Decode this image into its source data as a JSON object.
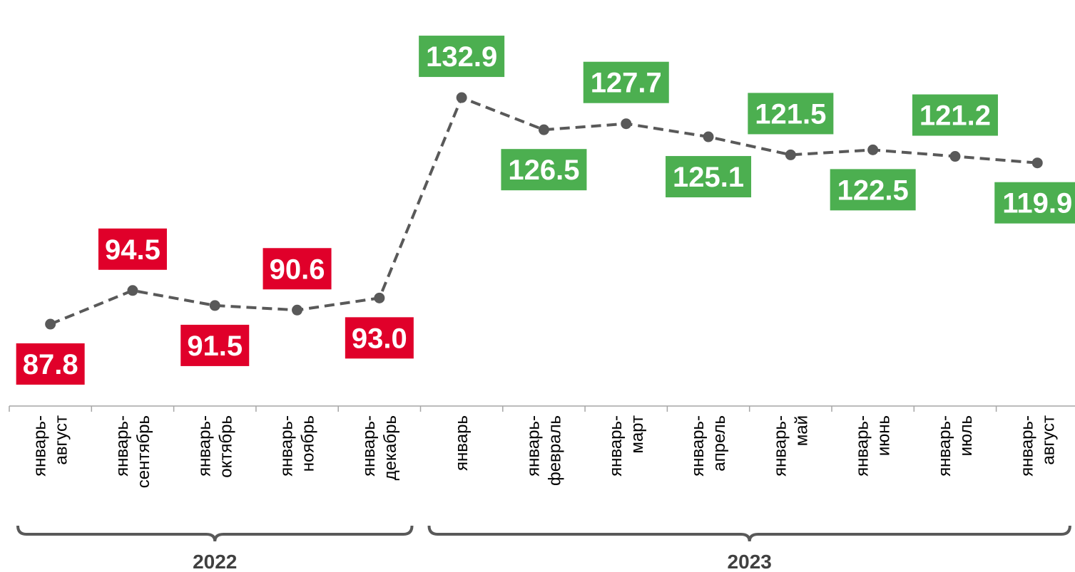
{
  "chart_data": {
    "type": "line",
    "title": "",
    "xlabel": "",
    "ylabel": "",
    "ylim": [
      80,
      140
    ],
    "grid": false,
    "categories": [
      [
        "январь-",
        "август"
      ],
      [
        "январь-",
        "сентябрь"
      ],
      [
        "январь-",
        "октябрь"
      ],
      [
        "январь-",
        "ноябрь"
      ],
      [
        "январь-",
        "декабрь"
      ],
      [
        "январь"
      ],
      [
        "январь-",
        "февраль"
      ],
      [
        "январь-",
        "март"
      ],
      [
        "январь-",
        "апрель"
      ],
      [
        "январь-",
        "май"
      ],
      [
        "январь-",
        "июнь"
      ],
      [
        "январь-",
        "июль"
      ],
      [
        "январь-",
        "август"
      ]
    ],
    "series": [
      {
        "values": [
          87.8,
          94.5,
          91.5,
          90.6,
          93.0,
          132.9,
          126.5,
          127.7,
          125.1,
          121.5,
          122.5,
          121.2,
          119.9
        ]
      }
    ],
    "labels": [
      "87.8",
      "94.5",
      "91.5",
      "90.6",
      "93.0",
      "132.9",
      "126.5",
      "127.7",
      "125.1",
      "121.5",
      "122.5",
      "121.2",
      "119.9"
    ],
    "label_sides": [
      "below",
      "above",
      "below",
      "above",
      "below",
      "above",
      "below",
      "above",
      "below",
      "above",
      "below",
      "above",
      "below"
    ],
    "groups": [
      {
        "label": "2022",
        "from": 0,
        "to": 4
      },
      {
        "label": "2023",
        "from": 5,
        "to": 12
      }
    ],
    "colors": {
      "line": "#595959",
      "below_100": "#e0002a",
      "above_100": "#4caf50",
      "axis": "#a6a6a6",
      "brace": "#595959"
    }
  }
}
